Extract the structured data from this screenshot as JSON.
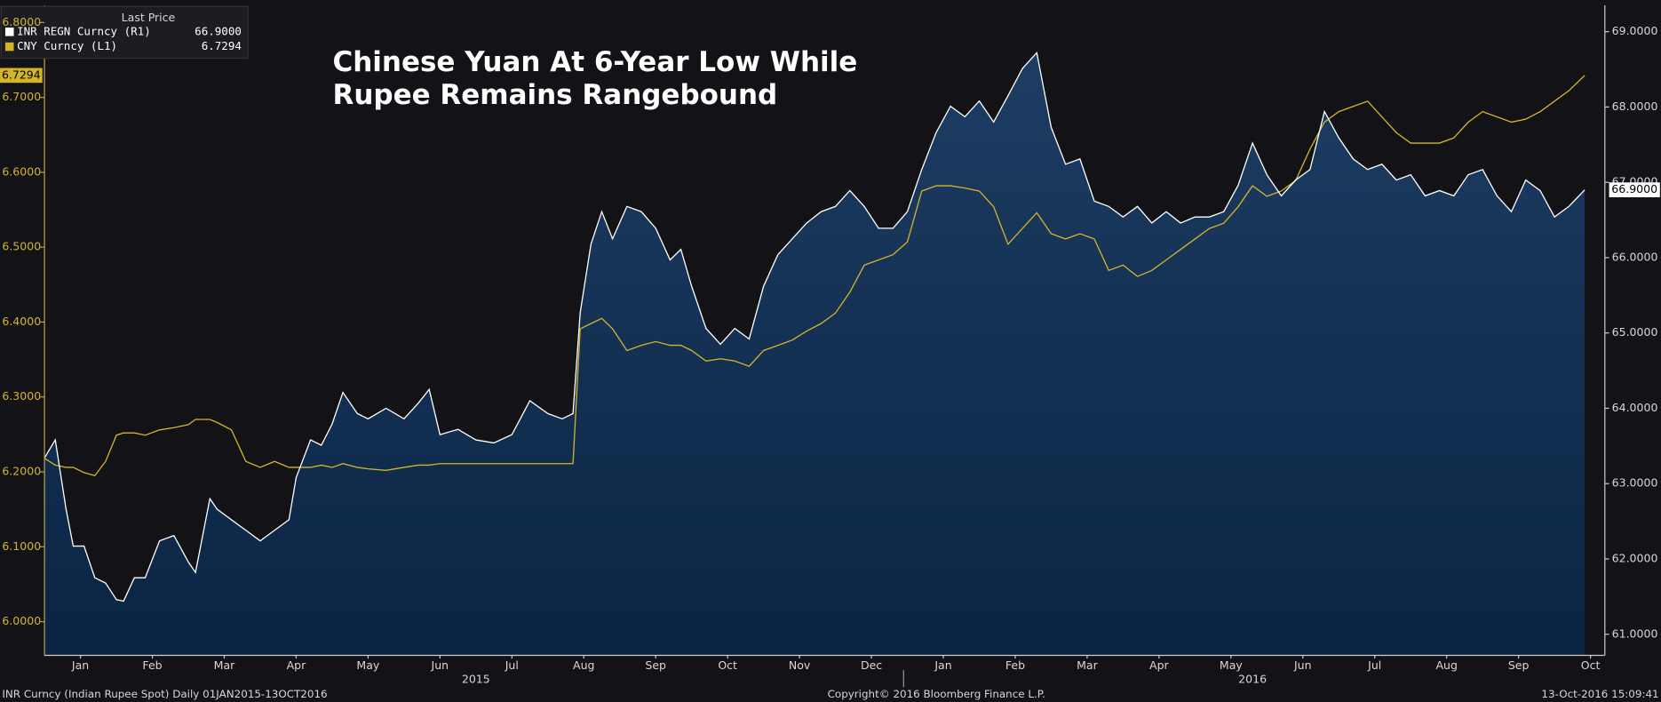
{
  "chart_data": {
    "type": "line",
    "title": [
      "Chinese Yuan At 6-Year Low While",
      "Rupee Remains Rangebound"
    ],
    "legend_title": "Last Price",
    "x": [
      0,
      0.15,
      0.3,
      0.4,
      0.55,
      0.7,
      0.85,
      1.0,
      1.1,
      1.25,
      1.4,
      1.6,
      1.8,
      2.0,
      2.1,
      2.3,
      2.4,
      2.6,
      2.8,
      3.0,
      3.2,
      3.4,
      3.5,
      3.7,
      3.85,
      4.0,
      4.15,
      4.35,
      4.5,
      4.75,
      5.0,
      5.2,
      5.35,
      5.5,
      5.75,
      6.0,
      6.25,
      6.5,
      6.75,
      7.0,
      7.2,
      7.35,
      7.45,
      7.6,
      7.75,
      7.9,
      8.1,
      8.3,
      8.5,
      8.7,
      8.85,
      9.0,
      9.2,
      9.4,
      9.6,
      9.8,
      10.0,
      10.2,
      10.4,
      10.6,
      10.8,
      11.0,
      11.2,
      11.4,
      11.6,
      11.8,
      12.0,
      12.2,
      12.4,
      12.6,
      12.8,
      13.0,
      13.2,
      13.4,
      13.6,
      13.8,
      14.0,
      14.2,
      14.4,
      14.6,
      14.8,
      15.0,
      15.2,
      15.4,
      15.6,
      15.8,
      16.0,
      16.2,
      16.4,
      16.6,
      16.8,
      17.0,
      17.2,
      17.4,
      17.6,
      17.8,
      18.0,
      18.2,
      18.4,
      18.6,
      18.8,
      19.0,
      19.2,
      19.4,
      19.6,
      19.8,
      20.0,
      20.2,
      20.4,
      20.6,
      20.8,
      21.0,
      21.2,
      21.42
    ],
    "xlim": [
      0,
      21.7
    ],
    "xticks": [
      {
        "value": 0.5,
        "label": "Jan"
      },
      {
        "value": 1.5,
        "label": "Feb"
      },
      {
        "value": 2.5,
        "label": "Mar"
      },
      {
        "value": 3.5,
        "label": "Apr"
      },
      {
        "value": 4.5,
        "label": "May"
      },
      {
        "value": 5.5,
        "label": "Jun"
      },
      {
        "value": 6.5,
        "label": "Jul"
      },
      {
        "value": 7.5,
        "label": "Aug"
      },
      {
        "value": 8.5,
        "label": "Sep"
      },
      {
        "value": 9.5,
        "label": "Oct"
      },
      {
        "value": 10.5,
        "label": "Nov"
      },
      {
        "value": 11.5,
        "label": "Dec"
      },
      {
        "value": 12.5,
        "label": "Jan"
      },
      {
        "value": 13.5,
        "label": "Feb"
      },
      {
        "value": 14.5,
        "label": "Mar"
      },
      {
        "value": 15.5,
        "label": "Apr"
      },
      {
        "value": 16.5,
        "label": "May"
      },
      {
        "value": 17.5,
        "label": "Jun"
      },
      {
        "value": 18.5,
        "label": "Jul"
      },
      {
        "value": 19.5,
        "label": "Aug"
      },
      {
        "value": 20.5,
        "label": "Sep"
      },
      {
        "value": 21.5,
        "label": "Oct"
      }
    ],
    "year_ticks": [
      {
        "value": 6,
        "label": "2015"
      },
      {
        "value": 16.8,
        "label": "2016"
      }
    ],
    "ylim": [
      5.955,
      6.823
    ],
    "yticks": [
      {
        "value": 6.0,
        "label": "6.0000"
      },
      {
        "value": 6.1,
        "label": "6.1000"
      },
      {
        "value": 6.2,
        "label": "6.2000"
      },
      {
        "value": 6.3,
        "label": "6.3000"
      },
      {
        "value": 6.4,
        "label": "6.4000"
      },
      {
        "value": 6.5,
        "label": "6.5000"
      },
      {
        "value": 6.6,
        "label": "6.6000"
      },
      {
        "value": 6.7,
        "label": "6.7000"
      },
      {
        "value": 6.8,
        "label": "6.8000"
      }
    ],
    "y2lim": [
      60.72,
      69.35
    ],
    "y2ticks": [
      {
        "value": 61,
        "label": "61.0000"
      },
      {
        "value": 62,
        "label": "62.0000"
      },
      {
        "value": 63,
        "label": "63.0000"
      },
      {
        "value": 64,
        "label": "64.0000"
      },
      {
        "value": 65,
        "label": "65.0000"
      },
      {
        "value": 66,
        "label": "66.0000"
      },
      {
        "value": 67,
        "label": "67.0000"
      },
      {
        "value": 68,
        "label": "68.0000"
      },
      {
        "value": 69,
        "label": "69.0000"
      }
    ],
    "series": [
      {
        "name": "INR REGN Curncy  (R1)",
        "color": "#ffffff",
        "axis": "y2",
        "area": true,
        "last_value": {
          "value": 66.9,
          "label": "66.9000"
        },
        "values": [
          63.34,
          63.58,
          62.66,
          62.17,
          62.17,
          61.75,
          61.68,
          61.46,
          61.44,
          61.75,
          61.75,
          62.24,
          62.31,
          61.96,
          61.82,
          62.8,
          62.66,
          62.52,
          62.38,
          62.24,
          62.38,
          62.52,
          63.08,
          63.58,
          63.51,
          63.79,
          64.21,
          63.93,
          63.86,
          64.0,
          63.86,
          64.07,
          64.25,
          63.65,
          63.72,
          63.58,
          63.54,
          63.65,
          64.1,
          63.93,
          63.86,
          63.93,
          65.27,
          66.18,
          66.61,
          66.25,
          66.68,
          66.61,
          66.39,
          65.97,
          66.11,
          65.62,
          65.06,
          64.85,
          65.06,
          64.92,
          65.62,
          66.04,
          66.25,
          66.46,
          66.61,
          66.68,
          66.89,
          66.68,
          66.39,
          66.39,
          66.61,
          67.17,
          67.66,
          68.01,
          67.87,
          68.08,
          67.8,
          68.15,
          68.51,
          68.72,
          67.73,
          67.24,
          67.31,
          66.75,
          66.68,
          66.54,
          66.68,
          66.46,
          66.61,
          66.46,
          66.54,
          66.54,
          66.61,
          66.96,
          67.52,
          67.1,
          66.82,
          67.03,
          67.17,
          67.94,
          67.59,
          67.31,
          67.17,
          67.24,
          67.03,
          67.1,
          66.82,
          66.89,
          66.82,
          67.1,
          67.17,
          66.82,
          66.61,
          67.03,
          66.89,
          66.54,
          66.68,
          66.9
        ]
      },
      {
        "name": "CNY Curncy  (L1)",
        "color": "#d4b52a",
        "axis": "y",
        "last_value": {
          "value": 6.7294,
          "label": "6.7294"
        },
        "values": [
          6.218,
          6.209,
          6.206,
          6.206,
          6.199,
          6.195,
          6.214,
          6.249,
          6.252,
          6.252,
          6.249,
          6.256,
          6.259,
          6.263,
          6.27,
          6.27,
          6.266,
          6.256,
          6.214,
          6.206,
          6.214,
          6.206,
          6.206,
          6.206,
          6.209,
          6.206,
          6.211,
          6.206,
          6.204,
          6.202,
          6.206,
          6.209,
          6.209,
          6.211,
          6.211,
          6.211,
          6.211,
          6.211,
          6.211,
          6.211,
          6.211,
          6.211,
          6.391,
          6.398,
          6.405,
          6.391,
          6.362,
          6.369,
          6.374,
          6.369,
          6.369,
          6.362,
          6.348,
          6.351,
          6.348,
          6.341,
          6.362,
          6.369,
          6.376,
          6.388,
          6.398,
          6.412,
          6.44,
          6.476,
          6.483,
          6.49,
          6.507,
          6.575,
          6.582,
          6.582,
          6.579,
          6.575,
          6.554,
          6.504,
          6.525,
          6.546,
          6.518,
          6.511,
          6.518,
          6.511,
          6.469,
          6.476,
          6.461,
          6.469,
          6.483,
          6.497,
          6.511,
          6.525,
          6.532,
          6.554,
          6.582,
          6.568,
          6.575,
          6.589,
          6.631,
          6.667,
          6.681,
          6.688,
          6.695,
          6.674,
          6.653,
          6.639,
          6.639,
          6.639,
          6.646,
          6.667,
          6.681,
          6.674,
          6.667,
          6.671,
          6.681,
          6.695,
          6.709,
          6.7294
        ]
      }
    ],
    "footer": {
      "left": "INR Curncy (Indian Rupee Spot)  Daily 01JAN2015-13OCT2016",
      "center": "Copyright© 2016 Bloomberg Finance L.P.",
      "right": "13-Oct-2016 15:09:41"
    }
  }
}
